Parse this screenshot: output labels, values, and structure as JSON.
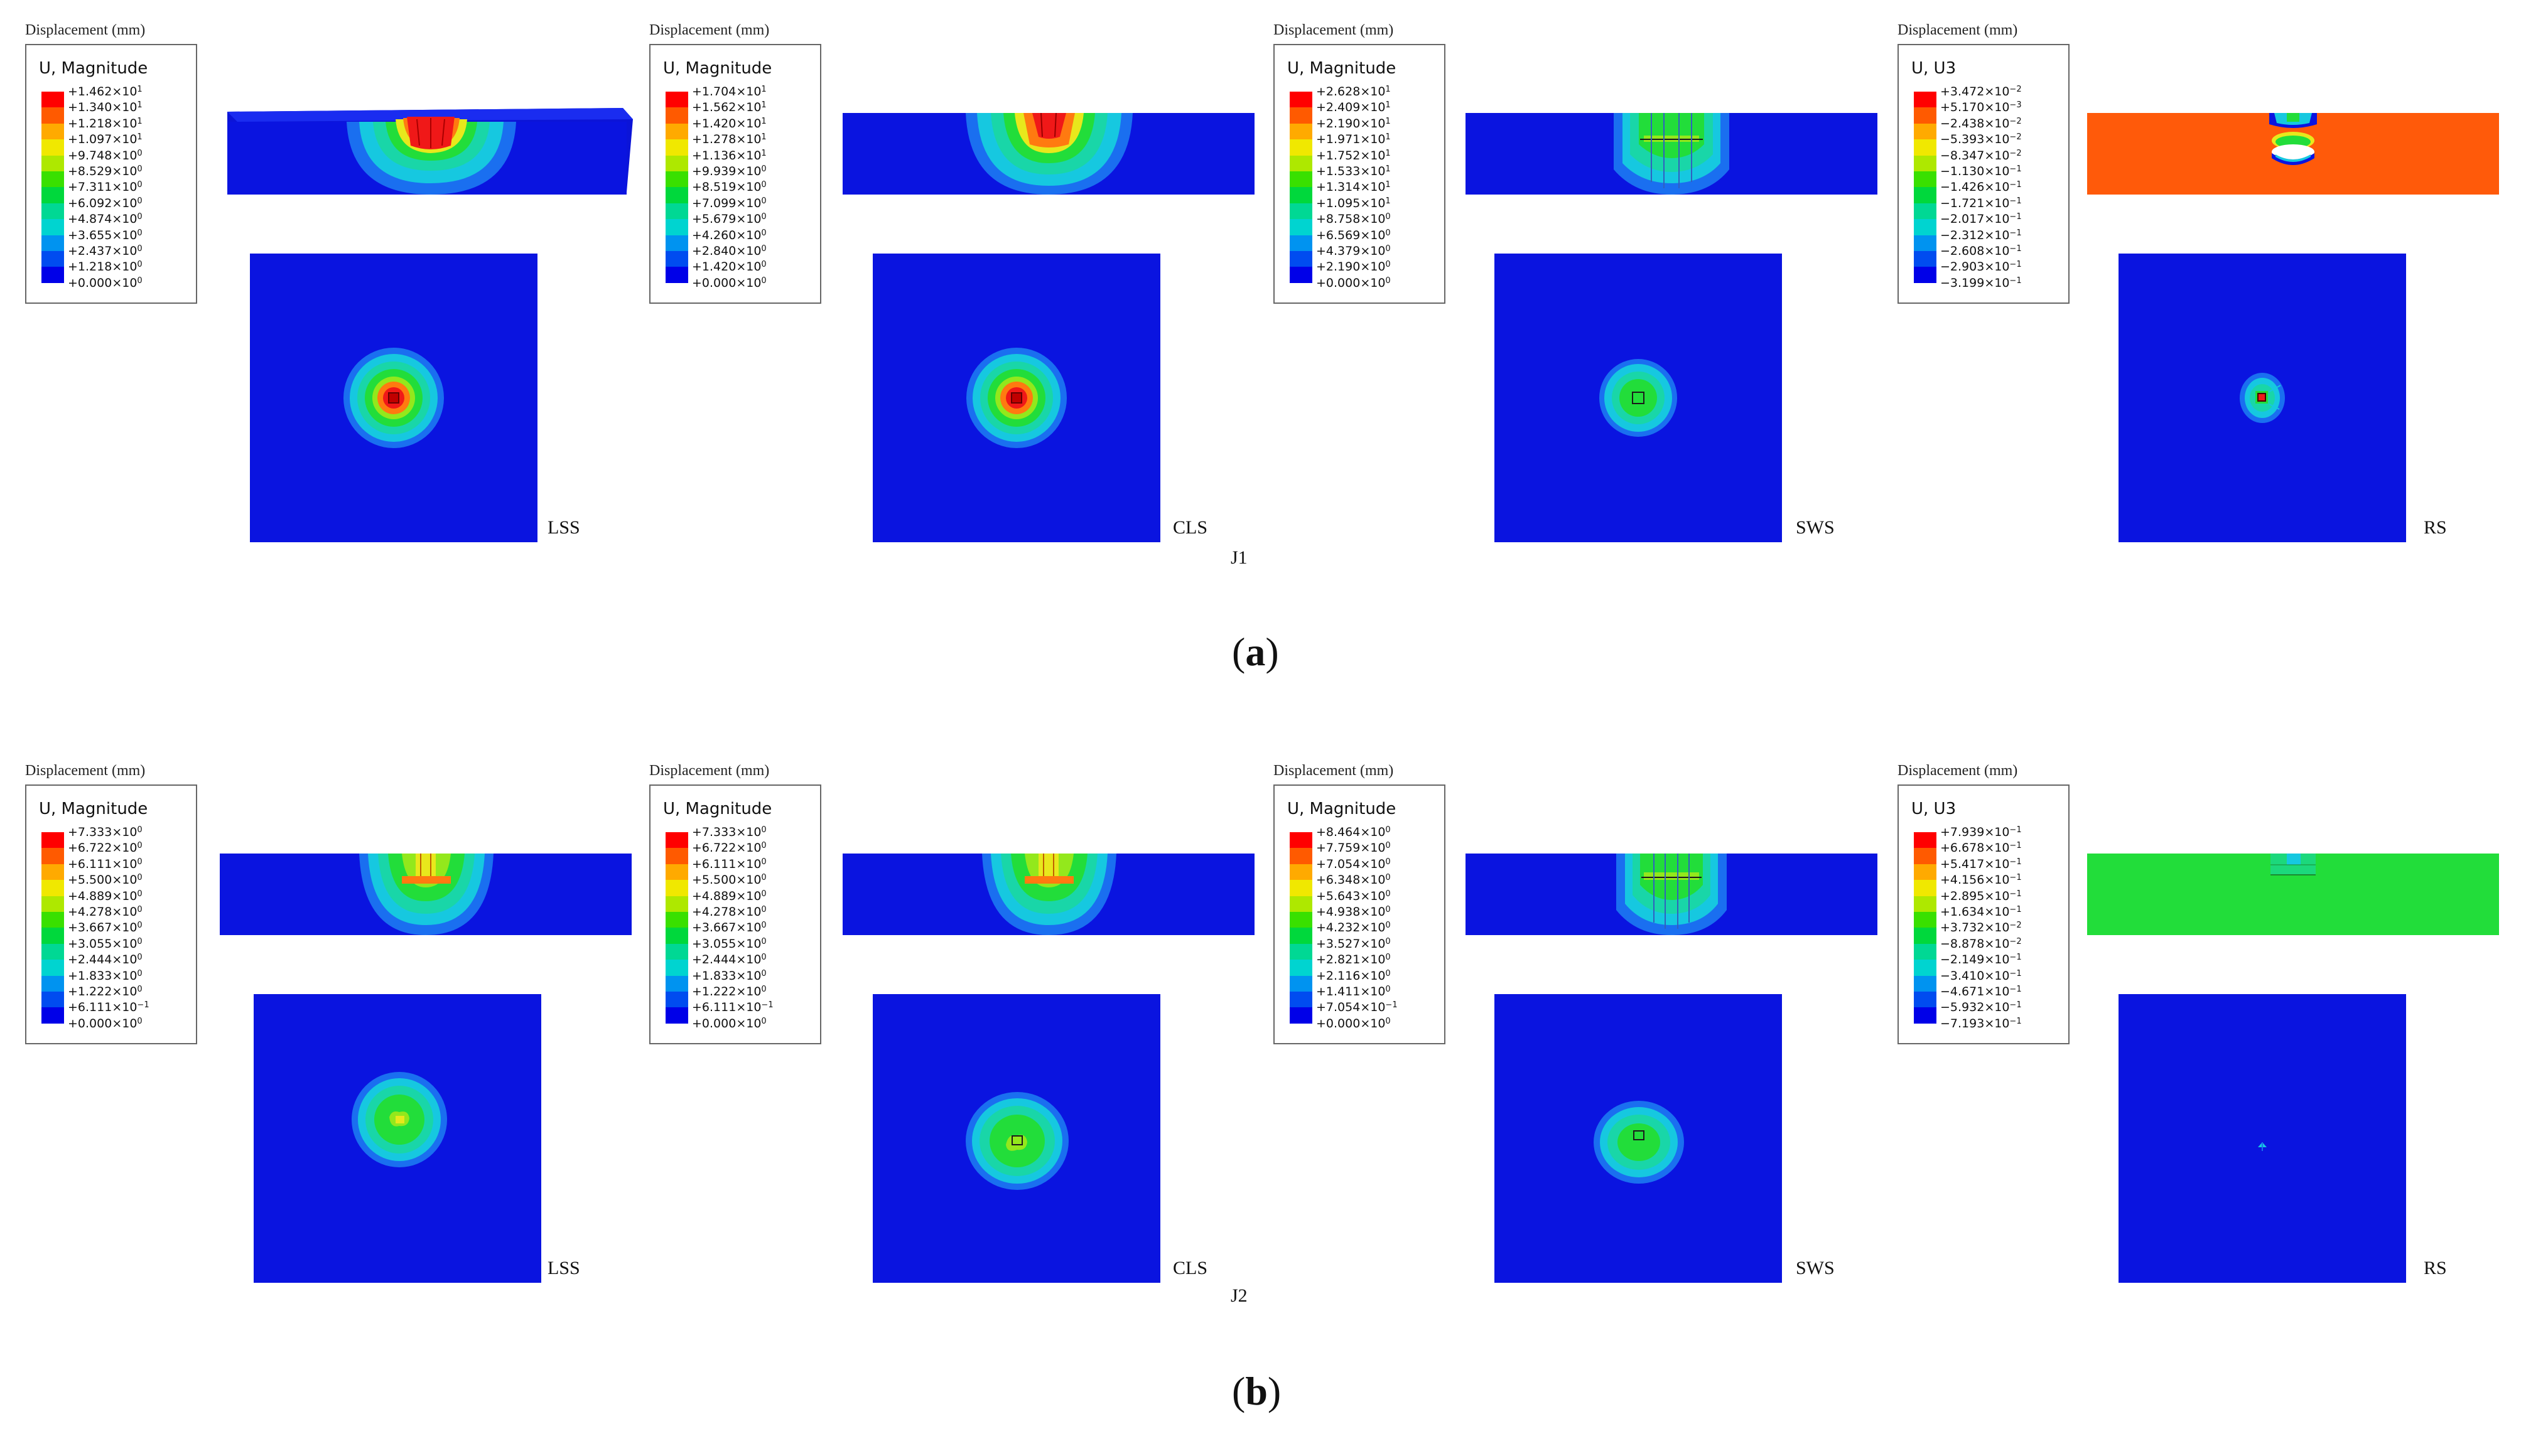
{
  "colors": {
    "blue": "#0a14e0",
    "mid_blue": "#1a6ff0",
    "cyan": "#16c8e0",
    "teal": "#19d6a8",
    "green": "#22dd3a",
    "lime": "#93e81c",
    "yellow": "#e8e81c",
    "orange": "#ff7a10",
    "red": "#f01818",
    "rs_orange": "#ff5a0a"
  },
  "legend_colors": [
    "#ff0000",
    "#ff5a00",
    "#ffaa00",
    "#f0e800",
    "#aee800",
    "#39e000",
    "#00d83c",
    "#00d894",
    "#00d4d0",
    "#0093f0",
    "#004cf0",
    "#0000e8"
  ],
  "rows": [
    {
      "id": "a",
      "sub_open": "(",
      "sub_letter": "a",
      "sub_close": ")",
      "joint": "J1",
      "panels": [
        {
          "disp_label": "Displacement (mm)",
          "legend_title": "U, Magnitude",
          "method": "LSS",
          "values": [
            {
              "m": "+1.462",
              "e": "1"
            },
            {
              "m": "+1.340",
              "e": "1"
            },
            {
              "m": "+1.218",
              "e": "1"
            },
            {
              "m": "+1.097",
              "e": "1"
            },
            {
              "m": "+9.748",
              "e": "0"
            },
            {
              "m": "+8.529",
              "e": "0"
            },
            {
              "m": "+7.311",
              "e": "0"
            },
            {
              "m": "+6.092",
              "e": "0"
            },
            {
              "m": "+4.874",
              "e": "0"
            },
            {
              "m": "+3.655",
              "e": "0"
            },
            {
              "m": "+2.437",
              "e": "0"
            },
            {
              "m": "+1.218",
              "e": "0"
            },
            {
              "m": "+0.000",
              "e": "0"
            }
          ]
        },
        {
          "disp_label": "Displacement (mm)",
          "legend_title": "U, Magnitude",
          "method": "CLS",
          "values": [
            {
              "m": "+1.704",
              "e": "1"
            },
            {
              "m": "+1.562",
              "e": "1"
            },
            {
              "m": "+1.420",
              "e": "1"
            },
            {
              "m": "+1.278",
              "e": "1"
            },
            {
              "m": "+1.136",
              "e": "1"
            },
            {
              "m": "+9.939",
              "e": "0"
            },
            {
              "m": "+8.519",
              "e": "0"
            },
            {
              "m": "+7.099",
              "e": "0"
            },
            {
              "m": "+5.679",
              "e": "0"
            },
            {
              "m": "+4.260",
              "e": "0"
            },
            {
              "m": "+2.840",
              "e": "0"
            },
            {
              "m": "+1.420",
              "e": "0"
            },
            {
              "m": "+0.000",
              "e": "0"
            }
          ]
        },
        {
          "disp_label": "Displacement (mm)",
          "legend_title": "U, Magnitude",
          "method": "SWS",
          "values": [
            {
              "m": "+2.628",
              "e": "1"
            },
            {
              "m": "+2.409",
              "e": "1"
            },
            {
              "m": "+2.190",
              "e": "1"
            },
            {
              "m": "+1.971",
              "e": "1"
            },
            {
              "m": "+1.752",
              "e": "1"
            },
            {
              "m": "+1.533",
              "e": "1"
            },
            {
              "m": "+1.314",
              "e": "1"
            },
            {
              "m": "+1.095",
              "e": "1"
            },
            {
              "m": "+8.758",
              "e": "0"
            },
            {
              "m": "+6.569",
              "e": "0"
            },
            {
              "m": "+4.379",
              "e": "0"
            },
            {
              "m": "+2.190",
              "e": "0"
            },
            {
              "m": "+0.000",
              "e": "0"
            }
          ]
        },
        {
          "disp_label": "Displacement (mm)",
          "legend_title": "U, U3",
          "method": "RS",
          "values": [
            {
              "m": "+3.472",
              "e": "−2"
            },
            {
              "m": "+5.170",
              "e": "−3"
            },
            {
              "m": "−2.438",
              "e": "−2"
            },
            {
              "m": "−5.393",
              "e": "−2"
            },
            {
              "m": "−8.347",
              "e": "−2"
            },
            {
              "m": "−1.130",
              "e": "−1"
            },
            {
              "m": "−1.426",
              "e": "−1"
            },
            {
              "m": "−1.721",
              "e": "−1"
            },
            {
              "m": "−2.017",
              "e": "−1"
            },
            {
              "m": "−2.312",
              "e": "−1"
            },
            {
              "m": "−2.608",
              "e": "−1"
            },
            {
              "m": "−2.903",
              "e": "−1"
            },
            {
              "m": "−3.199",
              "e": "−1"
            }
          ]
        }
      ]
    },
    {
      "id": "b",
      "sub_open": "(",
      "sub_letter": "b",
      "sub_close": ")",
      "joint": "J2",
      "panels": [
        {
          "disp_label": "Displacement (mm)",
          "legend_title": "U, Magnitude",
          "method": "LSS",
          "values": [
            {
              "m": "+7.333",
              "e": "0"
            },
            {
              "m": "+6.722",
              "e": "0"
            },
            {
              "m": "+6.111",
              "e": "0"
            },
            {
              "m": "+5.500",
              "e": "0"
            },
            {
              "m": "+4.889",
              "e": "0"
            },
            {
              "m": "+4.278",
              "e": "0"
            },
            {
              "m": "+3.667",
              "e": "0"
            },
            {
              "m": "+3.055",
              "e": "0"
            },
            {
              "m": "+2.444",
              "e": "0"
            },
            {
              "m": "+1.833",
              "e": "0"
            },
            {
              "m": "+1.222",
              "e": "0"
            },
            {
              "m": "+6.111",
              "e": "−1"
            },
            {
              "m": "+0.000",
              "e": "0"
            }
          ]
        },
        {
          "disp_label": "Displacement (mm)",
          "legend_title": "U, Magnitude",
          "method": "CLS",
          "values": [
            {
              "m": "+7.333",
              "e": "0"
            },
            {
              "m": "+6.722",
              "e": "0"
            },
            {
              "m": "+6.111",
              "e": "0"
            },
            {
              "m": "+5.500",
              "e": "0"
            },
            {
              "m": "+4.889",
              "e": "0"
            },
            {
              "m": "+4.278",
              "e": "0"
            },
            {
              "m": "+3.667",
              "e": "0"
            },
            {
              "m": "+3.055",
              "e": "0"
            },
            {
              "m": "+2.444",
              "e": "0"
            },
            {
              "m": "+1.833",
              "e": "0"
            },
            {
              "m": "+1.222",
              "e": "0"
            },
            {
              "m": "+6.111",
              "e": "−1"
            },
            {
              "m": "+0.000",
              "e": "0"
            }
          ]
        },
        {
          "disp_label": "Displacement (mm)",
          "legend_title": "U, Magnitude",
          "method": "SWS",
          "values": [
            {
              "m": "+8.464",
              "e": "0"
            },
            {
              "m": "+7.759",
              "e": "0"
            },
            {
              "m": "+7.054",
              "e": "0"
            },
            {
              "m": "+6.348",
              "e": "0"
            },
            {
              "m": "+5.643",
              "e": "0"
            },
            {
              "m": "+4.938",
              "e": "0"
            },
            {
              "m": "+4.232",
              "e": "0"
            },
            {
              "m": "+3.527",
              "e": "0"
            },
            {
              "m": "+2.821",
              "e": "0"
            },
            {
              "m": "+2.116",
              "e": "0"
            },
            {
              "m": "+1.411",
              "e": "0"
            },
            {
              "m": "+7.054",
              "e": "−1"
            },
            {
              "m": "+0.000",
              "e": "0"
            }
          ]
        },
        {
          "disp_label": "Displacement (mm)",
          "legend_title": "U, U3",
          "method": "RS",
          "values": [
            {
              "m": "+7.939",
              "e": "−1"
            },
            {
              "m": "+6.678",
              "e": "−1"
            },
            {
              "m": "+5.417",
              "e": "−1"
            },
            {
              "m": "+4.156",
              "e": "−1"
            },
            {
              "m": "+2.895",
              "e": "−1"
            },
            {
              "m": "+1.634",
              "e": "−1"
            },
            {
              "m": "+3.732",
              "e": "−2"
            },
            {
              "m": "−8.878",
              "e": "−2"
            },
            {
              "m": "−2.149",
              "e": "−1"
            },
            {
              "m": "−3.410",
              "e": "−1"
            },
            {
              "m": "−4.671",
              "e": "−1"
            },
            {
              "m": "−5.932",
              "e": "−1"
            },
            {
              "m": "−7.193",
              "e": "−1"
            }
          ]
        }
      ]
    }
  ]
}
